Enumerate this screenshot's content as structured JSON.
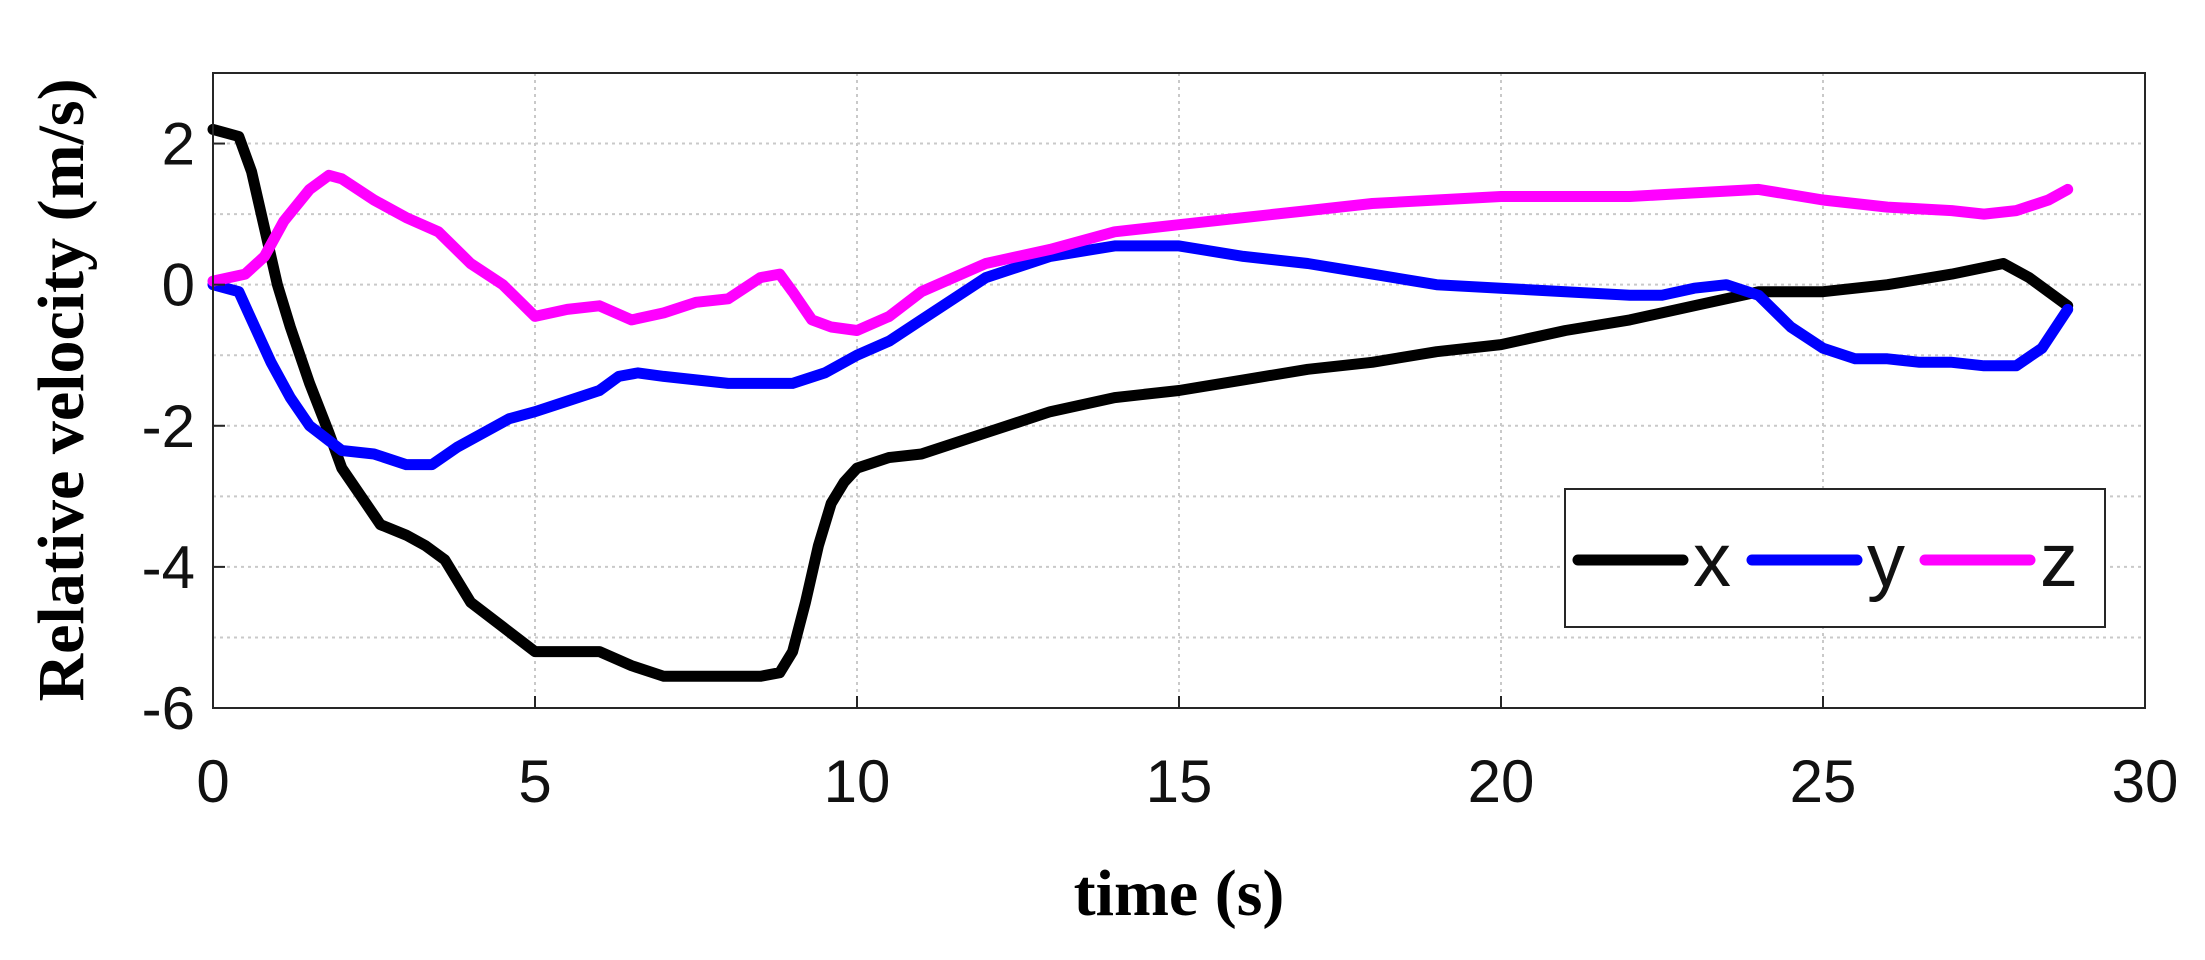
{
  "chart_data": {
    "type": "line",
    "title": "",
    "xlabel": "time (s)",
    "ylabel": "Relative velocity (m/s)",
    "xlim": [
      0,
      30
    ],
    "ylim": [
      -6,
      3
    ],
    "xticks": [
      0,
      5,
      10,
      15,
      20,
      25,
      30
    ],
    "yticks": [
      -6,
      -4,
      -2,
      0,
      2
    ],
    "xtick_labels": [
      "0",
      "5",
      "10",
      "15",
      "20",
      "25",
      "30"
    ],
    "ytick_labels": [
      "-6",
      "-4",
      "-2",
      "0",
      "2"
    ],
    "grid": true,
    "legend": {
      "placement": "bottom-right",
      "orientation": "horizontal"
    },
    "series": [
      {
        "name": "x",
        "color": "#000000",
        "x": [
          0,
          0.4,
          0.6,
          0.8,
          1.0,
          1.2,
          1.5,
          1.8,
          2.0,
          2.3,
          2.6,
          3.0,
          3.3,
          3.6,
          4.0,
          4.5,
          5.0,
          5.5,
          6.0,
          6.5,
          7.0,
          7.5,
          8.0,
          8.5,
          8.8,
          9.0,
          9.2,
          9.4,
          9.6,
          9.8,
          10.0,
          10.5,
          11.0,
          12.0,
          13.0,
          14.0,
          15.0,
          16.0,
          17.0,
          18.0,
          19.0,
          20.0,
          21.0,
          22.0,
          23.0,
          24.0,
          25.0,
          26.0,
          27.0,
          27.8,
          28.2,
          28.5,
          28.8
        ],
        "y": [
          2.2,
          2.1,
          1.6,
          0.8,
          0.0,
          -0.6,
          -1.4,
          -2.1,
          -2.6,
          -3.0,
          -3.4,
          -3.55,
          -3.7,
          -3.9,
          -4.5,
          -4.85,
          -5.2,
          -5.2,
          -5.2,
          -5.4,
          -5.55,
          -5.55,
          -5.55,
          -5.55,
          -5.5,
          -5.2,
          -4.5,
          -3.7,
          -3.1,
          -2.8,
          -2.6,
          -2.45,
          -2.4,
          -2.1,
          -1.8,
          -1.6,
          -1.5,
          -1.35,
          -1.2,
          -1.1,
          -0.95,
          -0.85,
          -0.65,
          -0.5,
          -0.3,
          -0.1,
          -0.1,
          0.0,
          0.15,
          0.3,
          0.1,
          -0.1,
          -0.3
        ]
      },
      {
        "name": "y",
        "color": "#0000ff",
        "x": [
          0,
          0.4,
          0.6,
          0.9,
          1.2,
          1.5,
          2.0,
          2.5,
          3.0,
          3.4,
          3.8,
          4.2,
          4.6,
          5.0,
          5.5,
          6.0,
          6.3,
          6.6,
          7.0,
          7.5,
          8.0,
          8.5,
          9.0,
          9.5,
          10.0,
          10.5,
          11.0,
          12.0,
          13.0,
          14.0,
          15.0,
          16.0,
          17.0,
          18.0,
          19.0,
          20.0,
          21.0,
          22.0,
          22.5,
          23.0,
          23.5,
          24.0,
          24.5,
          25.0,
          25.5,
          26.0,
          26.5,
          27.0,
          27.5,
          28.0,
          28.4,
          28.8
        ],
        "y": [
          0.0,
          -0.1,
          -0.5,
          -1.1,
          -1.6,
          -2.0,
          -2.35,
          -2.4,
          -2.55,
          -2.55,
          -2.3,
          -2.1,
          -1.9,
          -1.8,
          -1.65,
          -1.5,
          -1.3,
          -1.25,
          -1.3,
          -1.35,
          -1.4,
          -1.4,
          -1.4,
          -1.25,
          -1.0,
          -0.8,
          -0.5,
          0.1,
          0.4,
          0.55,
          0.55,
          0.4,
          0.3,
          0.15,
          0.0,
          -0.05,
          -0.1,
          -0.15,
          -0.15,
          -0.05,
          0.0,
          -0.15,
          -0.6,
          -0.9,
          -1.05,
          -1.05,
          -1.1,
          -1.1,
          -1.15,
          -1.15,
          -0.9,
          -0.35
        ]
      },
      {
        "name": "z",
        "color": "#ff00ff",
        "x": [
          0,
          0.5,
          0.8,
          1.1,
          1.5,
          1.8,
          2.0,
          2.5,
          3.0,
          3.5,
          4.0,
          4.5,
          5.0,
          5.5,
          6.0,
          6.5,
          7.0,
          7.5,
          8.0,
          8.5,
          8.8,
          9.0,
          9.3,
          9.6,
          10.0,
          10.5,
          11.0,
          12.0,
          13.0,
          14.0,
          15.0,
          16.0,
          17.0,
          18.0,
          19.0,
          20.0,
          21.0,
          22.0,
          23.0,
          24.0,
          25.0,
          26.0,
          27.0,
          27.5,
          28.0,
          28.5,
          28.8
        ],
        "y": [
          0.05,
          0.15,
          0.4,
          0.9,
          1.35,
          1.55,
          1.5,
          1.2,
          0.95,
          0.75,
          0.3,
          0.0,
          -0.45,
          -0.35,
          -0.3,
          -0.5,
          -0.4,
          -0.25,
          -0.2,
          0.1,
          0.15,
          -0.1,
          -0.5,
          -0.6,
          -0.65,
          -0.45,
          -0.1,
          0.3,
          0.5,
          0.75,
          0.85,
          0.95,
          1.05,
          1.15,
          1.2,
          1.25,
          1.25,
          1.25,
          1.3,
          1.35,
          1.2,
          1.1,
          1.05,
          1.0,
          1.05,
          1.2,
          1.35
        ]
      }
    ]
  }
}
